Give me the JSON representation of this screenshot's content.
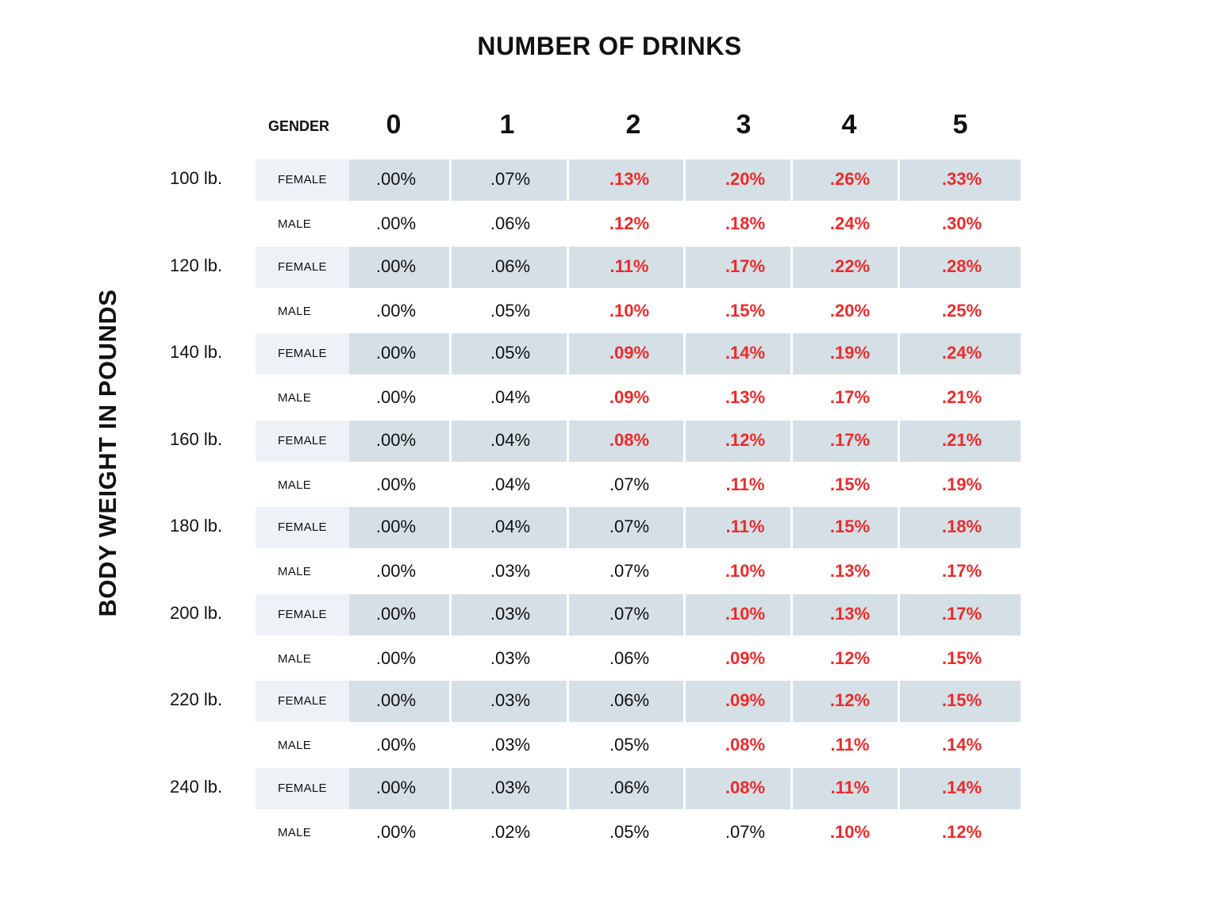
{
  "title": "NUMBER OF DRINKS",
  "ylabel": "BODY WEIGHT IN POUNDS",
  "gender_header": "GENDER",
  "colors": {
    "band": "#d5e0e6",
    "gender_band": "#eef2f6",
    "highlight": "#ee2a2a",
    "text": "#111111"
  },
  "chart_data": {
    "type": "table",
    "title": "NUMBER OF DRINKS",
    "ylabel": "BODY WEIGHT IN POUNDS",
    "columns": [
      "0",
      "1",
      "2",
      "3",
      "4",
      "5"
    ],
    "rows": [
      {
        "weight": "100 lb.",
        "gender": "FEMALE",
        "values": [
          ".00%",
          ".07%",
          ".13%",
          ".20%",
          ".26%",
          ".33%"
        ],
        "red": [
          false,
          false,
          true,
          true,
          true,
          true
        ]
      },
      {
        "weight": "",
        "gender": "MALE",
        "values": [
          ".00%",
          ".06%",
          ".12%",
          ".18%",
          ".24%",
          ".30%"
        ],
        "red": [
          false,
          false,
          true,
          true,
          true,
          true
        ]
      },
      {
        "weight": "120 lb.",
        "gender": "FEMALE",
        "values": [
          ".00%",
          ".06%",
          ".11%",
          ".17%",
          ".22%",
          ".28%"
        ],
        "red": [
          false,
          false,
          true,
          true,
          true,
          true
        ]
      },
      {
        "weight": "",
        "gender": "MALE",
        "values": [
          ".00%",
          ".05%",
          ".10%",
          ".15%",
          ".20%",
          ".25%"
        ],
        "red": [
          false,
          false,
          true,
          true,
          true,
          true
        ]
      },
      {
        "weight": "140 lb.",
        "gender": "FEMALE",
        "values": [
          ".00%",
          ".05%",
          ".09%",
          ".14%",
          ".19%",
          ".24%"
        ],
        "red": [
          false,
          false,
          true,
          true,
          true,
          true
        ]
      },
      {
        "weight": "",
        "gender": "MALE",
        "values": [
          ".00%",
          ".04%",
          ".09%",
          ".13%",
          ".17%",
          ".21%"
        ],
        "red": [
          false,
          false,
          true,
          true,
          true,
          true
        ]
      },
      {
        "weight": "160 lb.",
        "gender": "FEMALE",
        "values": [
          ".00%",
          ".04%",
          ".08%",
          ".12%",
          ".17%",
          ".21%"
        ],
        "red": [
          false,
          false,
          true,
          true,
          true,
          true
        ]
      },
      {
        "weight": "",
        "gender": "MALE",
        "values": [
          ".00%",
          ".04%",
          ".07%",
          ".11%",
          ".15%",
          ".19%"
        ],
        "red": [
          false,
          false,
          false,
          true,
          true,
          true
        ]
      },
      {
        "weight": "180 lb.",
        "gender": "FEMALE",
        "values": [
          ".00%",
          ".04%",
          ".07%",
          ".11%",
          ".15%",
          ".18%"
        ],
        "red": [
          false,
          false,
          false,
          true,
          true,
          true
        ]
      },
      {
        "weight": "",
        "gender": "MALE",
        "values": [
          ".00%",
          ".03%",
          ".07%",
          ".10%",
          ".13%",
          ".17%"
        ],
        "red": [
          false,
          false,
          false,
          true,
          true,
          true
        ]
      },
      {
        "weight": "200 lb.",
        "gender": "FEMALE",
        "values": [
          ".00%",
          ".03%",
          ".07%",
          ".10%",
          ".13%",
          ".17%"
        ],
        "red": [
          false,
          false,
          false,
          true,
          true,
          true
        ]
      },
      {
        "weight": "",
        "gender": "MALE",
        "values": [
          ".00%",
          ".03%",
          ".06%",
          ".09%",
          ".12%",
          ".15%"
        ],
        "red": [
          false,
          false,
          false,
          true,
          true,
          true
        ]
      },
      {
        "weight": "220 lb.",
        "gender": "FEMALE",
        "values": [
          ".00%",
          ".03%",
          ".06%",
          ".09%",
          ".12%",
          ".15%"
        ],
        "red": [
          false,
          false,
          false,
          true,
          true,
          true
        ]
      },
      {
        "weight": "",
        "gender": "MALE",
        "values": [
          ".00%",
          ".03%",
          ".05%",
          ".08%",
          ".11%",
          ".14%"
        ],
        "red": [
          false,
          false,
          false,
          true,
          true,
          true
        ]
      },
      {
        "weight": "240 lb.",
        "gender": "FEMALE",
        "values": [
          ".00%",
          ".03%",
          ".06%",
          ".08%",
          ".11%",
          ".14%"
        ],
        "red": [
          false,
          false,
          false,
          true,
          true,
          true
        ]
      },
      {
        "weight": "",
        "gender": "MALE",
        "values": [
          ".00%",
          ".02%",
          ".05%",
          ".07%",
          ".10%",
          ".12%"
        ],
        "red": [
          false,
          false,
          false,
          false,
          true,
          true
        ]
      }
    ]
  }
}
